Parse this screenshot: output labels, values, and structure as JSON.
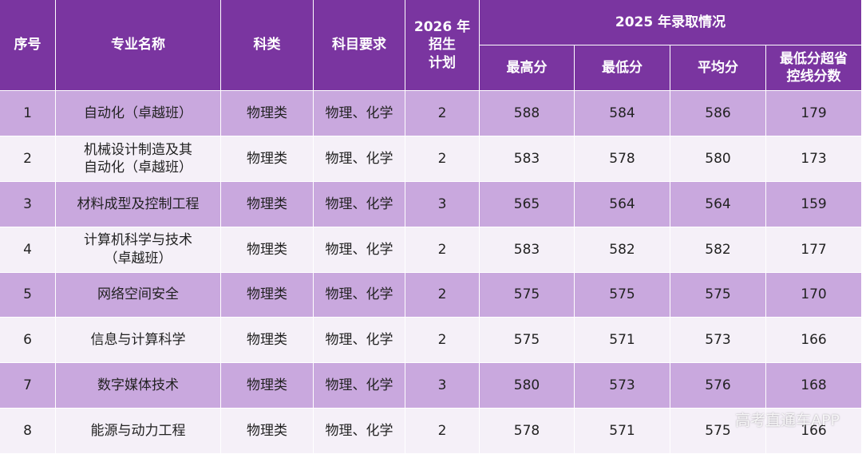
{
  "table": {
    "header": [
      "序号",
      "专业名称",
      "科类",
      "科目要求",
      "2026 年\n招生\n计划"
    ],
    "group_header": "2025 年录取情况",
    "sub_header": [
      "最高分",
      "最低分",
      "平均分",
      "最低分超省\n控线分数"
    ],
    "rows": [
      [
        1,
        "自动化（卓越班）",
        "物理类",
        "物理、化学",
        2,
        588,
        584,
        586,
        179
      ],
      [
        2,
        "机械设计制造及其\n自动化（卓越班）",
        "物理类",
        "物理、化学",
        2,
        583,
        578,
        580,
        173
      ],
      [
        3,
        "材料成型及控制工程",
        "物理类",
        "物理、化学",
        3,
        565,
        564,
        564,
        159
      ],
      [
        4,
        "计算机科学与技术\n（卓越班）",
        "物理类",
        "物理、化学",
        2,
        583,
        582,
        582,
        177
      ],
      [
        5,
        "网络空间安全",
        "物理类",
        "物理、化学",
        2,
        575,
        575,
        575,
        170
      ],
      [
        6,
        "信息与计算科学",
        "物理类",
        "物理、化学",
        2,
        575,
        571,
        573,
        166
      ],
      [
        7,
        "数字媒体技术",
        "物理类",
        "物理、化学",
        3,
        580,
        573,
        576,
        168
      ],
      [
        8,
        "能源与动力工程",
        "物理类",
        "物理、化学",
        2,
        578,
        571,
        575,
        166
      ]
    ]
  },
  "watermark": "高考直通车APP"
}
